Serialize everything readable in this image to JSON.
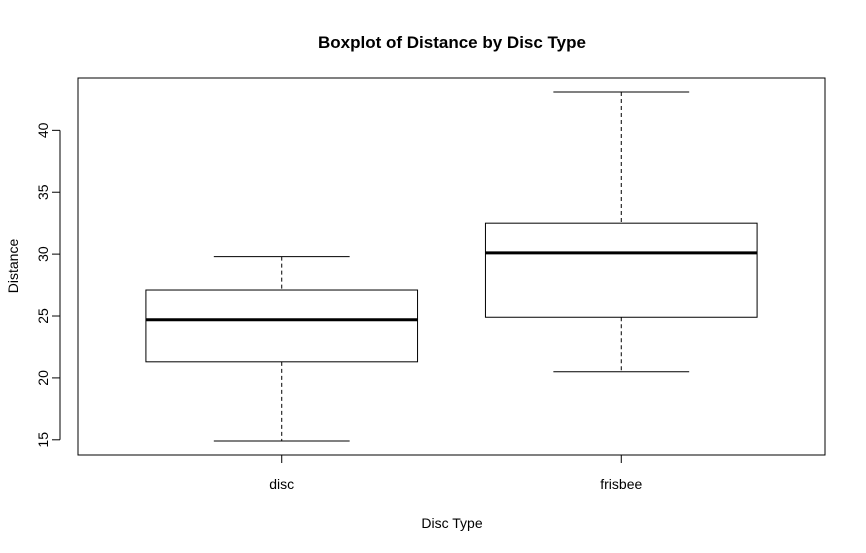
{
  "chart_data": {
    "type": "boxplot",
    "title": "Boxplot of Distance by Disc Type",
    "xlabel": "Disc Type",
    "ylabel": "Distance",
    "categories": [
      "disc",
      "frisbee"
    ],
    "boxes": [
      {
        "category": "disc",
        "min": 14.9,
        "q1": 21.3,
        "median": 24.7,
        "q3": 27.1,
        "max": 29.8
      },
      {
        "category": "frisbee",
        "min": 20.5,
        "q1": 24.9,
        "median": 30.1,
        "q3": 32.5,
        "max": 43.1
      }
    ],
    "yticks": [
      "15",
      "20",
      "25",
      "30",
      "35",
      "40"
    ],
    "ylim": [
      14.9,
      43.1
    ],
    "grid": false,
    "legend": "none"
  }
}
